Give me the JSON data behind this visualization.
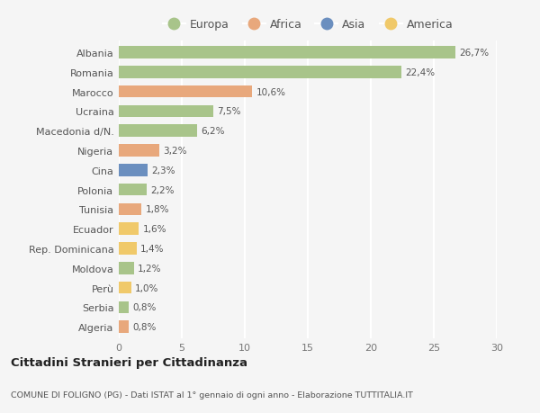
{
  "countries": [
    "Albania",
    "Romania",
    "Marocco",
    "Ucraina",
    "Macedonia d/N.",
    "Nigeria",
    "Cina",
    "Polonia",
    "Tunisia",
    "Ecuador",
    "Rep. Dominicana",
    "Moldova",
    "Perù",
    "Serbia",
    "Algeria"
  ],
  "values": [
    26.7,
    22.4,
    10.6,
    7.5,
    6.2,
    3.2,
    2.3,
    2.2,
    1.8,
    1.6,
    1.4,
    1.2,
    1.0,
    0.8,
    0.8
  ],
  "labels": [
    "26,7%",
    "22,4%",
    "10,6%",
    "7,5%",
    "6,2%",
    "3,2%",
    "2,3%",
    "2,2%",
    "1,8%",
    "1,6%",
    "1,4%",
    "1,2%",
    "1,0%",
    "0,8%",
    "0,8%"
  ],
  "continents": [
    "Europa",
    "Europa",
    "Africa",
    "Europa",
    "Europa",
    "Africa",
    "Asia",
    "Europa",
    "Africa",
    "America",
    "America",
    "Europa",
    "America",
    "Europa",
    "Africa"
  ],
  "colors": {
    "Europa": "#a8c48a",
    "Africa": "#e8a87c",
    "Asia": "#6b8fbf",
    "America": "#f0c96a"
  },
  "legend_order": [
    "Europa",
    "Africa",
    "Asia",
    "America"
  ],
  "title": "Cittadini Stranieri per Cittadinanza",
  "subtitle": "COMUNE DI FOLIGNO (PG) - Dati ISTAT al 1° gennaio di ogni anno - Elaborazione TUTTITALIA.IT",
  "xlim": [
    0,
    30
  ],
  "xticks": [
    0,
    5,
    10,
    15,
    20,
    25,
    30
  ],
  "background_color": "#f5f5f5",
  "grid_color": "#ffffff"
}
